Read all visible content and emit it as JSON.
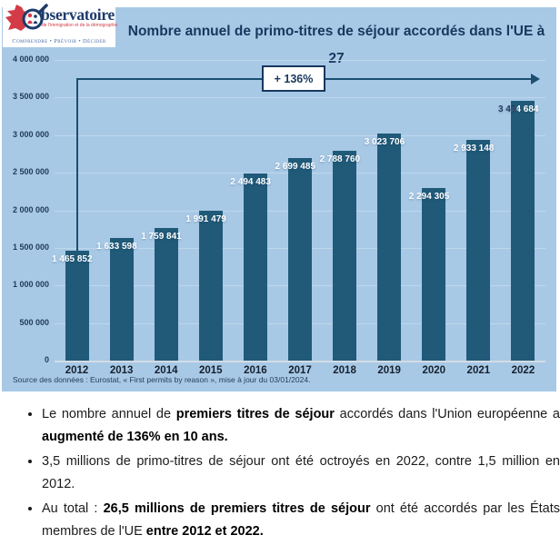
{
  "logo": {
    "wordmark": "bservatoire",
    "subtitle": "de l'immigration et de la démographie",
    "tagline": "Comprendre • Prévoir • Décider"
  },
  "header": {
    "title": "Nombre annuel de primo-titres de séjour accordés dans l'UE à 27"
  },
  "chart_data": {
    "type": "bar",
    "title": "Nombre annuel de primo-titres de séjour accordés dans l'UE à 27",
    "categories": [
      "2012",
      "2013",
      "2014",
      "2015",
      "2016",
      "2017",
      "2018",
      "2019",
      "2020",
      "2021",
      "2022"
    ],
    "values": [
      1465852,
      1633598,
      1759841,
      1991479,
      2494483,
      2699485,
      2788760,
      3023706,
      2294305,
      2933148,
      3454684
    ],
    "value_labels": [
      "1 465 852",
      "1 633 598",
      "1 759 841",
      "1 991 479",
      "2 494 483",
      "2 699 485",
      "2 788 760",
      "3 023 706",
      "2 294 305",
      "2 933 148",
      "3 454 684"
    ],
    "annotation": "+ 136%",
    "xlabel": "",
    "ylabel": "",
    "ylim": [
      0,
      4000000
    ],
    "ytick_step": 500000,
    "ytick_labels": [
      "0",
      "500 000",
      "1 000 000",
      "1 500 000",
      "2 000 000",
      "2 500 000",
      "3 000 000",
      "3 500 000",
      "4 000 000"
    ],
    "grid": true,
    "legend": false,
    "source": "Source des données : Eurostat, « First permits by reason », mise à jour du 03/01/2024.",
    "colors": {
      "panel_bg": "#a8c9e6",
      "bar": "#205a78",
      "title_text": "#17375d",
      "bar_label": "#ffffff",
      "last_bar_label": "#17375d",
      "arrow": "#1c4f70",
      "gridline": "#bdd7ec"
    }
  },
  "bullets": [
    [
      {
        "t": "Le nombre annuel de ",
        "b": false
      },
      {
        "t": "premiers titres de séjour",
        "b": true
      },
      {
        "t": " accordés dans l'Union européenne a ",
        "b": false
      },
      {
        "t": "augmenté de 136% en 10 ans.",
        "b": true
      }
    ],
    [
      {
        "t": "3,5 millions de primo-titres de séjour ont été octroyés en 2022, contre 1,5 million en 2012.",
        "b": false
      }
    ],
    [
      {
        "t": "Au total : ",
        "b": false
      },
      {
        "t": "26,5 millions de premiers titres de séjour",
        "b": true
      },
      {
        "t": " ont été accordés par les États membres de l'UE ",
        "b": false
      },
      {
        "t": "entre 2012 et 2022.",
        "b": true
      }
    ]
  ]
}
